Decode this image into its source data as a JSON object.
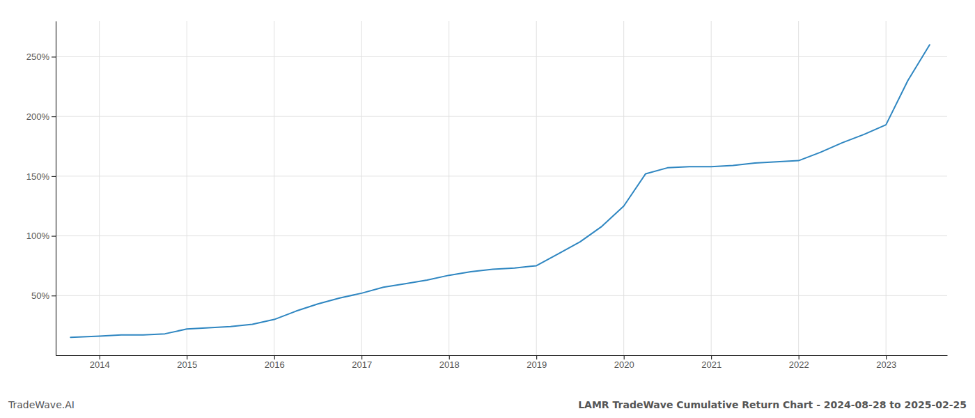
{
  "chart_data": {
    "type": "line",
    "title": "LAMR TradeWave Cumulative Return Chart - 2024-08-28 to 2025-02-25",
    "annotations": [
      "TradeWave.AI"
    ],
    "x": [
      2013.67,
      2014.0,
      2014.25,
      2014.5,
      2014.75,
      2015.0,
      2015.25,
      2015.5,
      2015.75,
      2016.0,
      2016.25,
      2016.5,
      2016.75,
      2017.0,
      2017.25,
      2017.5,
      2017.75,
      2018.0,
      2018.25,
      2018.5,
      2018.75,
      2019.0,
      2019.25,
      2019.5,
      2019.75,
      2020.0,
      2020.25,
      2020.5,
      2020.75,
      2021.0,
      2021.25,
      2021.5,
      2021.75,
      2022.0,
      2022.25,
      2022.5,
      2022.75,
      2023.0,
      2023.25,
      2023.5
    ],
    "values": [
      15,
      16,
      17,
      17,
      18,
      22,
      23,
      24,
      26,
      30,
      37,
      43,
      48,
      52,
      57,
      60,
      63,
      67,
      70,
      72,
      73,
      75,
      85,
      95,
      108,
      125,
      152,
      157,
      158,
      158,
      159,
      161,
      162,
      163,
      170,
      178,
      185,
      193,
      230,
      260
    ],
    "color": "#2E86C1",
    "xlim": [
      2013.5,
      2023.7
    ],
    "xticks": [
      2014,
      2015,
      2016,
      2017,
      2018,
      2019,
      2020,
      2021,
      2022,
      2023
    ],
    "ylim": [
      0,
      280
    ],
    "yticks": [
      {
        "value": 50,
        "label": "50%"
      },
      {
        "value": 100,
        "label": "100%"
      },
      {
        "value": 150,
        "label": "150%"
      },
      {
        "value": 200,
        "label": "200%"
      },
      {
        "value": 250,
        "label": "250%"
      }
    ],
    "grid": true
  }
}
